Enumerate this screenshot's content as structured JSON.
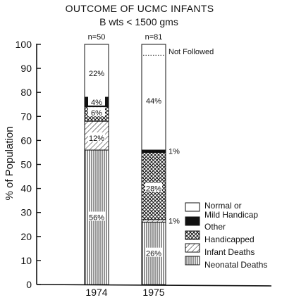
{
  "chart_data": {
    "type": "bar",
    "stacked": true,
    "title": "OUTCOME OF UCMC INFANTS",
    "subtitle": "B wts < 1500 gms",
    "ylabel": "% of Population",
    "xlabel": "",
    "ylim": [
      0,
      100
    ],
    "yticks": [
      0,
      10,
      20,
      30,
      40,
      50,
      60,
      70,
      80,
      90,
      100
    ],
    "categories": [
      "1974",
      "1975"
    ],
    "n_labels": [
      "n=50",
      "n=81"
    ],
    "series": [
      {
        "name": "Neonatal Deaths",
        "pattern": "vertical-lines",
        "values": [
          56,
          26
        ],
        "labels": [
          "56%",
          "26%"
        ]
      },
      {
        "name": "Infant Deaths",
        "pattern": "diagonal-hatch",
        "values": [
          12,
          1
        ],
        "labels": [
          "12%",
          "1%"
        ]
      },
      {
        "name": "Handicapped",
        "pattern": "crosshatch",
        "values": [
          6,
          28
        ],
        "labels": [
          "6%",
          "28%"
        ]
      },
      {
        "name": "Other",
        "pattern": "solid-black",
        "values": [
          4,
          1
        ],
        "labels": [
          "4%",
          "1%"
        ]
      },
      {
        "name": "Normal or Mild Handicap",
        "pattern": "white",
        "values": [
          22,
          44
        ],
        "labels": [
          "22%",
          "44%"
        ]
      }
    ],
    "legend_names": [
      "Normal or",
      "Mild Handicap",
      "Other",
      "Handicapped",
      "Infant Deaths",
      "Neonatal Deaths"
    ],
    "annotation": "Not Followed",
    "legend_position": "bottom-right",
    "grid": false
  }
}
